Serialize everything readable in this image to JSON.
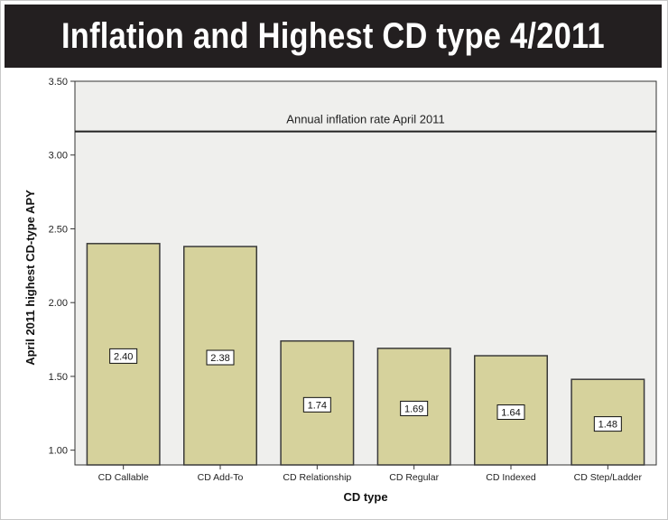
{
  "title": "Inflation and Highest CD type 4/2011",
  "colors": {
    "title_bg": "#231f20",
    "title_text": "#ffffff",
    "bar_fill": "#d6d29c",
    "bar_stroke": "#3a3a3a",
    "plot_bg": "#efefed",
    "axis": "#333333"
  },
  "chart_data": {
    "type": "bar",
    "xlabel": "CD type",
    "ylabel": "April 2011 highest CD-type APY",
    "categories": [
      "CD Callable",
      "CD Add-To",
      "CD Relationship",
      "CD Regular",
      "CD Indexed",
      "CD Step/Ladder"
    ],
    "values": [
      2.4,
      2.38,
      1.74,
      1.69,
      1.64,
      1.48
    ],
    "value_labels": [
      "2.40",
      "2.38",
      "1.74",
      "1.69",
      "1.64",
      "1.48"
    ],
    "ylim": [
      0.9,
      3.5
    ],
    "yticks": [
      1.0,
      1.5,
      2.0,
      2.5,
      3.0,
      3.5
    ],
    "ytick_labels": [
      "1.00",
      "1.50",
      "2.00",
      "2.50",
      "3.00",
      "3.50"
    ],
    "reference_line": {
      "value": 3.16,
      "label": "Annual inflation rate April 2011"
    },
    "grid": false,
    "legend": "none"
  }
}
